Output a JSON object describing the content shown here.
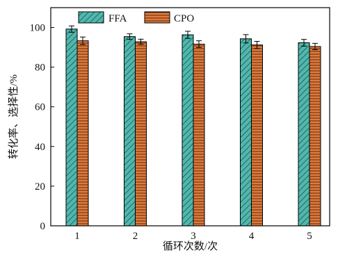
{
  "chart_data": {
    "type": "bar",
    "categories": [
      "1",
      "2",
      "3",
      "4",
      "5"
    ],
    "series": [
      {
        "name": "FFA",
        "values": [
          99.2,
          95.4,
          96.3,
          94.3,
          92.3
        ],
        "errors": [
          1.6,
          1.4,
          1.8,
          2.1,
          1.7
        ],
        "color": "#4fb8ae",
        "pattern": "diagonal-hatch"
      },
      {
        "name": "CPO",
        "values": [
          93.3,
          92.8,
          91.6,
          91.2,
          90.4
        ],
        "errors": [
          1.9,
          1.3,
          1.7,
          1.8,
          1.6
        ],
        "color": "#e07b3c",
        "pattern": "horizontal-lines"
      }
    ],
    "title": "",
    "xlabel": "循环次数/次",
    "ylabel": "转化率、选择性/%",
    "ylim": [
      0,
      110
    ],
    "yticks": [
      0,
      20,
      40,
      60,
      80,
      100
    ],
    "grid": false,
    "legend_position": "top-left"
  }
}
